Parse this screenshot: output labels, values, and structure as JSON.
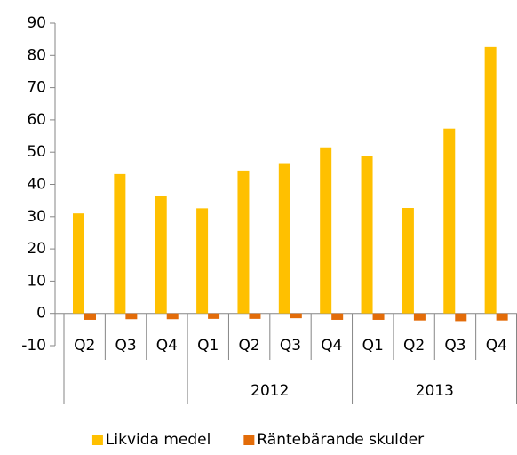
{
  "chart_data": {
    "type": "bar",
    "groups": [
      {
        "label": null,
        "categories": [
          "Q2",
          "Q3",
          "Q4"
        ]
      },
      {
        "label": "2012",
        "categories": [
          "Q1",
          "Q2",
          "Q3",
          "Q4"
        ]
      },
      {
        "label": "2013",
        "categories": [
          "Q1",
          "Q2",
          "Q3",
          "Q4"
        ]
      }
    ],
    "series": [
      {
        "name": "Likvida medel",
        "color": "#ffc000",
        "values": [
          31,
          43.2,
          36.4,
          32.6,
          44.3,
          46.6,
          51.5,
          48.8,
          32.7,
          57.3,
          82.6
        ]
      },
      {
        "name": "Räntebärande skulder",
        "color": "#e36c09",
        "values": [
          -2,
          -1.8,
          -1.8,
          -1.7,
          -1.7,
          -1.5,
          -2,
          -2,
          -2.2,
          -2.4,
          -2.2
        ]
      }
    ],
    "ylim": [
      -10,
      90
    ],
    "yticks": [
      -10,
      0,
      10,
      20,
      30,
      40,
      50,
      60,
      70,
      80,
      90
    ],
    "legend": "bottom"
  }
}
